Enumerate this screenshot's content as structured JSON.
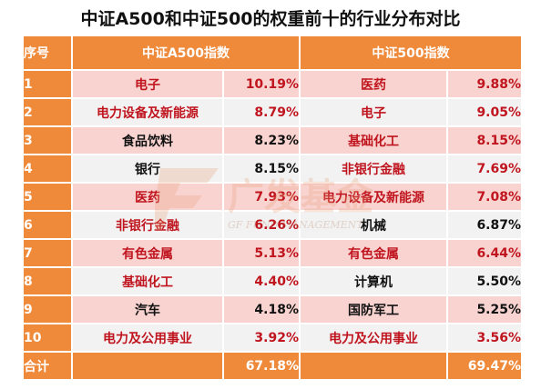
{
  "title": "中证A500和中证500的权重前十的行业分布对比",
  "headers": {
    "index": "序号",
    "a500": "中证A500指数",
    "csi500": "中证500指数"
  },
  "rows": [
    {
      "no": "1",
      "a_name": "电子",
      "a_val": "10.19%",
      "a_red": true,
      "b_name": "医药",
      "b_val": "9.88%",
      "b_red": true
    },
    {
      "no": "2",
      "a_name": "电力设备及新能源",
      "a_val": "8.79%",
      "a_red": true,
      "b_name": "电子",
      "b_val": "9.05%",
      "b_red": true
    },
    {
      "no": "3",
      "a_name": "食品饮料",
      "a_val": "8.23%",
      "a_red": false,
      "b_name": "基础化工",
      "b_val": "8.15%",
      "b_red": true
    },
    {
      "no": "4",
      "a_name": "银行",
      "a_val": "8.15%",
      "a_red": false,
      "b_name": "非银行金融",
      "b_val": "7.69%",
      "b_red": true
    },
    {
      "no": "5",
      "a_name": "医药",
      "a_val": "7.93%",
      "a_red": true,
      "b_name": "电力设备及新能源",
      "b_val": "7.08%",
      "b_red": true
    },
    {
      "no": "6",
      "a_name": "非银行金融",
      "a_val": "6.26%",
      "a_red": true,
      "b_name": "机械",
      "b_val": "6.87%",
      "b_red": false
    },
    {
      "no": "7",
      "a_name": "有色金属",
      "a_val": "5.13%",
      "a_red": true,
      "b_name": "有色金属",
      "b_val": "6.44%",
      "b_red": true
    },
    {
      "no": "8",
      "a_name": "基础化工",
      "a_val": "4.40%",
      "a_red": true,
      "b_name": "计算机",
      "b_val": "5.50%",
      "b_red": false
    },
    {
      "no": "9",
      "a_name": "汽车",
      "a_val": "4.18%",
      "a_red": false,
      "b_name": "国防军工",
      "b_val": "5.25%",
      "b_red": false
    },
    {
      "no": "10",
      "a_name": "电力及公用事业",
      "a_val": "3.92%",
      "a_red": true,
      "b_name": "电力及公用事业",
      "b_val": "3.56%",
      "b_red": true
    }
  ],
  "total": {
    "label": "合计",
    "a_val": "67.18%",
    "b_val": "69.47%"
  },
  "watermark": {
    "cn": "广发基金",
    "en": "GF FUND MANAGEMENT"
  },
  "colors": {
    "header": "#ef8a3b",
    "red_text": "#c0151f",
    "row_pink": "#f8d3cf",
    "row_gray": "#f2f2f2"
  }
}
